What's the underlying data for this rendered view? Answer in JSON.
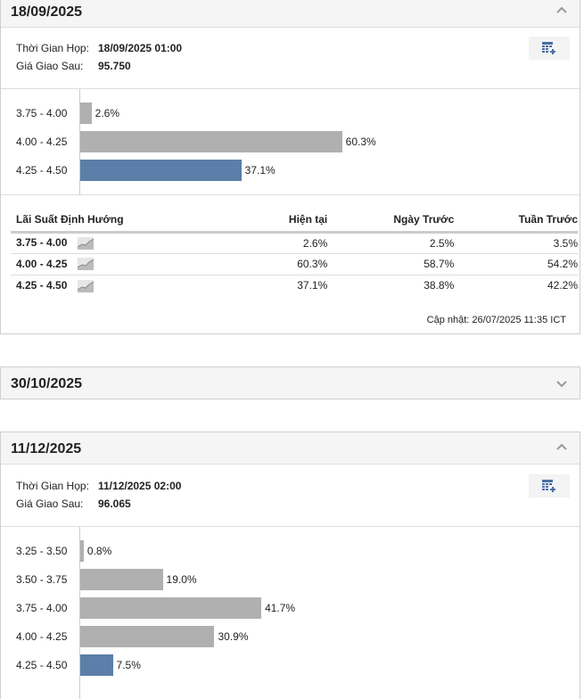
{
  "panels": [
    {
      "date": "18/09/2025",
      "meeting_label": "Thời Gian Họp:",
      "meeting_time": "18/09/2025 01:00",
      "futures_label": "Giá Giao Sau:",
      "futures_price": "95.750",
      "bars": [
        {
          "range": "3.75 - 4.00",
          "pct": 2.6,
          "label": "2.6%",
          "highlight": false
        },
        {
          "range": "4.00 - 4.25",
          "pct": 60.3,
          "label": "60.3%",
          "highlight": false
        },
        {
          "range": "4.25 - 4.50",
          "pct": 37.1,
          "label": "37.1%",
          "highlight": true
        }
      ],
      "table": {
        "headers": [
          "Lãi Suất Định Hướng",
          "Hiện tại",
          "Ngày Trước",
          "Tuần Trước"
        ],
        "rows": [
          [
            "3.75 - 4.00",
            "2.6%",
            "2.5%",
            "3.5%"
          ],
          [
            "4.00 - 4.25",
            "60.3%",
            "58.7%",
            "54.2%"
          ],
          [
            "4.25 - 4.50",
            "37.1%",
            "38.8%",
            "42.2%"
          ]
        ]
      },
      "updated": "Cập nhật: 26/07/2025 11:35 ICT"
    },
    {
      "date": "30/10/2025"
    },
    {
      "date": "11/12/2025",
      "meeting_label": "Thời Gian Họp:",
      "meeting_time": "11/12/2025 02:00",
      "futures_label": "Giá Giao Sau:",
      "futures_price": "96.065",
      "bars": [
        {
          "range": "3.25 - 3.50",
          "pct": 0.8,
          "label": "0.8%",
          "highlight": false
        },
        {
          "range": "3.50 - 3.75",
          "pct": 19.0,
          "label": "19.0%",
          "highlight": false
        },
        {
          "range": "3.75 - 4.00",
          "pct": 41.7,
          "label": "41.7%",
          "highlight": false
        },
        {
          "range": "4.00 - 4.25",
          "pct": 30.9,
          "label": "30.9%",
          "highlight": false
        },
        {
          "range": "4.25 - 4.50",
          "pct": 7.5,
          "label": "7.5%",
          "highlight": true
        }
      ]
    }
  ]
}
